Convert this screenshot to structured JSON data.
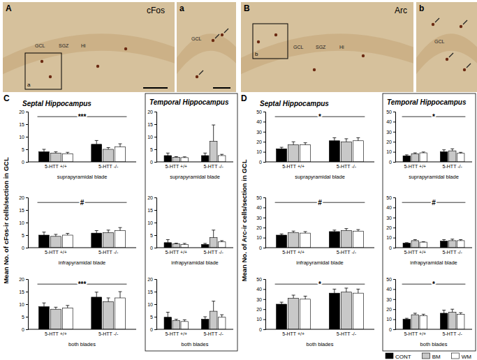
{
  "images": [
    {
      "letter": "A",
      "stain": "cFos",
      "labels": [
        "GCL",
        "SGZ",
        "Hi"
      ],
      "inset": "a"
    },
    {
      "letter": "a",
      "labels": [
        "GCL"
      ]
    },
    {
      "letter": "B",
      "stain": "Arc",
      "labels": [
        "GCL",
        "SGZ",
        "Hi"
      ],
      "inset": "b"
    },
    {
      "letter": "b",
      "labels": [
        "GCL"
      ]
    }
  ],
  "panels": [
    {
      "letter": "C",
      "ylabel": "Mean No. of cFos-ir cells/section in GCL",
      "regions": [
        "Septal Hippocampus",
        "Temporal Hippocampus"
      ]
    },
    {
      "letter": "D",
      "ylabel": "Mean No. of Arc-ir cells/section in GCL",
      "regions": [
        "Septal Hippocampus",
        "Temporal Hippocampus"
      ]
    }
  ],
  "chart_data": [
    {
      "type": "bar",
      "title": "suprapyramidal blade",
      "categories": [
        "5-HTT +/+",
        "5-HTT -/-"
      ],
      "series": [
        {
          "name": "CONT",
          "color": "#000000",
          "values": [
            4,
            7
          ],
          "errors": [
            1,
            1.5
          ]
        },
        {
          "name": "BM",
          "color": "#c8c8c8",
          "values": [
            3.5,
            5
          ],
          "errors": [
            0.5,
            0.7
          ]
        },
        {
          "name": "WM",
          "color": "#ffffff",
          "values": [
            3.2,
            6
          ],
          "errors": [
            0.6,
            1.2
          ]
        }
      ],
      "ylim": [
        0,
        20
      ],
      "yticks": [
        0,
        5,
        10,
        15,
        20
      ],
      "annotations": [
        "***"
      ]
    },
    {
      "type": "bar",
      "title": "infrapyramidal blade",
      "categories": [
        "5-HTT +/+",
        "5-HTT -/-"
      ],
      "series": [
        {
          "name": "CONT",
          "color": "#000000",
          "values": [
            5,
            5.8
          ],
          "errors": [
            1.2,
            1
          ]
        },
        {
          "name": "BM",
          "color": "#c8c8c8",
          "values": [
            4.5,
            6
          ],
          "errors": [
            0.8,
            1
          ]
        },
        {
          "name": "WM",
          "color": "#ffffff",
          "values": [
            5,
            6.8
          ],
          "errors": [
            0.7,
            1.2
          ]
        }
      ],
      "ylim": [
        0,
        20
      ],
      "yticks": [
        0,
        5,
        10,
        15,
        20
      ],
      "annotations": [
        "#"
      ]
    },
    {
      "type": "bar",
      "title": "both blades",
      "categories": [
        "5-HTT +/+",
        "5-HTT -/-"
      ],
      "series": [
        {
          "name": "CONT",
          "color": "#000000",
          "values": [
            9,
            12.8
          ],
          "errors": [
            1.5,
            2
          ]
        },
        {
          "name": "BM",
          "color": "#c8c8c8",
          "values": [
            8,
            11
          ],
          "errors": [
            0.8,
            1.5
          ]
        },
        {
          "name": "WM",
          "color": "#ffffff",
          "values": [
            8.5,
            12.5
          ],
          "errors": [
            1,
            2.5
          ]
        }
      ],
      "ylim": [
        0,
        20
      ],
      "yticks": [
        0,
        5,
        10,
        15,
        20
      ],
      "annotations": [
        "***"
      ]
    },
    {
      "type": "bar",
      "title": "suprapyramidal blade",
      "categories": [
        "5-HTT +/+",
        "5-HTT -/-"
      ],
      "series": [
        {
          "name": "CONT",
          "color": "#000000",
          "values": [
            2.5,
            2.5
          ],
          "errors": [
            1,
            1
          ]
        },
        {
          "name": "BM",
          "color": "#c8c8c8",
          "values": [
            1.8,
            8.2
          ],
          "errors": [
            0.3,
            6.5
          ]
        },
        {
          "name": "WM",
          "color": "#ffffff",
          "values": [
            1.7,
            2.5
          ],
          "errors": [
            0.3,
            0.5
          ]
        }
      ],
      "ylim": [
        0,
        20
      ],
      "yticks": [
        0,
        5,
        10,
        15,
        20
      ]
    },
    {
      "type": "bar",
      "title": "infrapyramidal blade",
      "categories": [
        "5-HTT +/+",
        "5-HTT -/-"
      ],
      "series": [
        {
          "name": "CONT",
          "color": "#000000",
          "values": [
            2,
            1.3
          ],
          "errors": [
            1.2,
            0.4
          ]
        },
        {
          "name": "BM",
          "color": "#c8c8c8",
          "values": [
            1.5,
            4
          ],
          "errors": [
            0.3,
            3
          ]
        },
        {
          "name": "WM",
          "color": "#ffffff",
          "values": [
            1.3,
            2.3
          ],
          "errors": [
            0.4,
            0.5
          ]
        }
      ],
      "ylim": [
        0,
        20
      ],
      "yticks": [
        0,
        5,
        10,
        15,
        20
      ]
    },
    {
      "type": "bar",
      "title": "both blades",
      "categories": [
        "5-HTT +/+",
        "5-HTT -/-"
      ],
      "series": [
        {
          "name": "CONT",
          "color": "#000000",
          "values": [
            4.8,
            4
          ],
          "errors": [
            2,
            1
          ]
        },
        {
          "name": "BM",
          "color": "#c8c8c8",
          "values": [
            3.5,
            7.2
          ],
          "errors": [
            0.5,
            4
          ]
        },
        {
          "name": "WM",
          "color": "#ffffff",
          "values": [
            3.1,
            4.8
          ],
          "errors": [
            0.7,
            1
          ]
        }
      ],
      "ylim": [
        0,
        20
      ],
      "yticks": [
        0,
        5,
        10,
        15,
        20
      ]
    },
    {
      "type": "bar",
      "title": "suprapyramidal blade",
      "categories": [
        "5-HTT +/+",
        "5-HTT -/-"
      ],
      "series": [
        {
          "name": "CONT",
          "color": "#000000",
          "values": [
            13,
            21
          ],
          "errors": [
            1.5,
            3
          ]
        },
        {
          "name": "BM",
          "color": "#c8c8c8",
          "values": [
            17,
            20
          ],
          "errors": [
            3,
            3
          ]
        },
        {
          "name": "WM",
          "color": "#ffffff",
          "values": [
            17,
            21
          ],
          "errors": [
            2,
            3
          ]
        }
      ],
      "ylim": [
        0,
        50
      ],
      "yticks": [
        0,
        10,
        20,
        30,
        40,
        50
      ],
      "annotations": [
        "*"
      ]
    },
    {
      "type": "bar",
      "title": "infrapyramidal blade",
      "categories": [
        "5-HTT +/+",
        "5-HTT -/-"
      ],
      "series": [
        {
          "name": "CONT",
          "color": "#000000",
          "values": [
            12.5,
            16
          ],
          "errors": [
            1.2,
            1.5
          ]
        },
        {
          "name": "BM",
          "color": "#c8c8c8",
          "values": [
            15,
            17
          ],
          "errors": [
            1.5,
            2
          ]
        },
        {
          "name": "WM",
          "color": "#ffffff",
          "values": [
            14.5,
            16.5
          ],
          "errors": [
            1.5,
            1.5
          ]
        }
      ],
      "ylim": [
        0,
        50
      ],
      "yticks": [
        0,
        10,
        20,
        30,
        40,
        50
      ],
      "annotations": [
        "#"
      ]
    },
    {
      "type": "bar",
      "title": "both blades",
      "categories": [
        "5-HTT +/+",
        "5-HTT -/-"
      ],
      "series": [
        {
          "name": "CONT",
          "color": "#000000",
          "values": [
            25,
            36
          ],
          "errors": [
            2,
            4
          ]
        },
        {
          "name": "BM",
          "color": "#c8c8c8",
          "values": [
            31,
            37
          ],
          "errors": [
            3,
            4
          ]
        },
        {
          "name": "WM",
          "color": "#ffffff",
          "values": [
            30,
            36
          ],
          "errors": [
            3,
            4
          ]
        }
      ],
      "ylim": [
        0,
        50
      ],
      "yticks": [
        0,
        10,
        20,
        30,
        40,
        50
      ],
      "annotations": [
        "*"
      ]
    },
    {
      "type": "bar",
      "title": "suprapyramidal blade",
      "categories": [
        "5-HTT +/+",
        "5-HTT -/-"
      ],
      "series": [
        {
          "name": "CONT",
          "color": "#000000",
          "values": [
            6,
            10
          ],
          "errors": [
            1,
            2
          ]
        },
        {
          "name": "BM",
          "color": "#c8c8c8",
          "values": [
            8,
            11
          ],
          "errors": [
            1,
            2
          ]
        },
        {
          "name": "WM",
          "color": "#ffffff",
          "values": [
            9,
            8.5
          ],
          "errors": [
            0.8,
            1
          ]
        }
      ],
      "ylim": [
        0,
        50
      ],
      "yticks": [
        0,
        10,
        20,
        30,
        40,
        50
      ],
      "annotations": [
        "*"
      ]
    },
    {
      "type": "bar",
      "title": "infrapyramidal blade",
      "categories": [
        "5-HTT +/+",
        "5-HTT -/-"
      ],
      "series": [
        {
          "name": "CONT",
          "color": "#000000",
          "values": [
            4.5,
            6.5
          ],
          "errors": [
            0.5,
            1.5
          ]
        },
        {
          "name": "BM",
          "color": "#c8c8c8",
          "values": [
            7,
            7
          ],
          "errors": [
            1,
            1.5
          ]
        },
        {
          "name": "WM",
          "color": "#ffffff",
          "values": [
            5.5,
            7
          ],
          "errors": [
            0.5,
            1
          ]
        }
      ],
      "ylim": [
        0,
        50
      ],
      "yticks": [
        0,
        10,
        20,
        30,
        40,
        50
      ],
      "annotations": [
        "#"
      ]
    },
    {
      "type": "bar",
      "title": "both blades",
      "categories": [
        "5-HTT +/+",
        "5-HTT -/-"
      ],
      "series": [
        {
          "name": "CONT",
          "color": "#000000",
          "values": [
            10,
            16
          ],
          "errors": [
            1,
            3
          ]
        },
        {
          "name": "BM",
          "color": "#c8c8c8",
          "values": [
            14.5,
            17
          ],
          "errors": [
            1.5,
            3
          ]
        },
        {
          "name": "WM",
          "color": "#ffffff",
          "values": [
            13.5,
            15
          ],
          "errors": [
            1.5,
            1.5
          ]
        }
      ],
      "ylim": [
        0,
        50
      ],
      "yticks": [
        0,
        10,
        20,
        30,
        40,
        50
      ],
      "annotations": [
        "*"
      ],
      "legend": "bottom right"
    }
  ]
}
